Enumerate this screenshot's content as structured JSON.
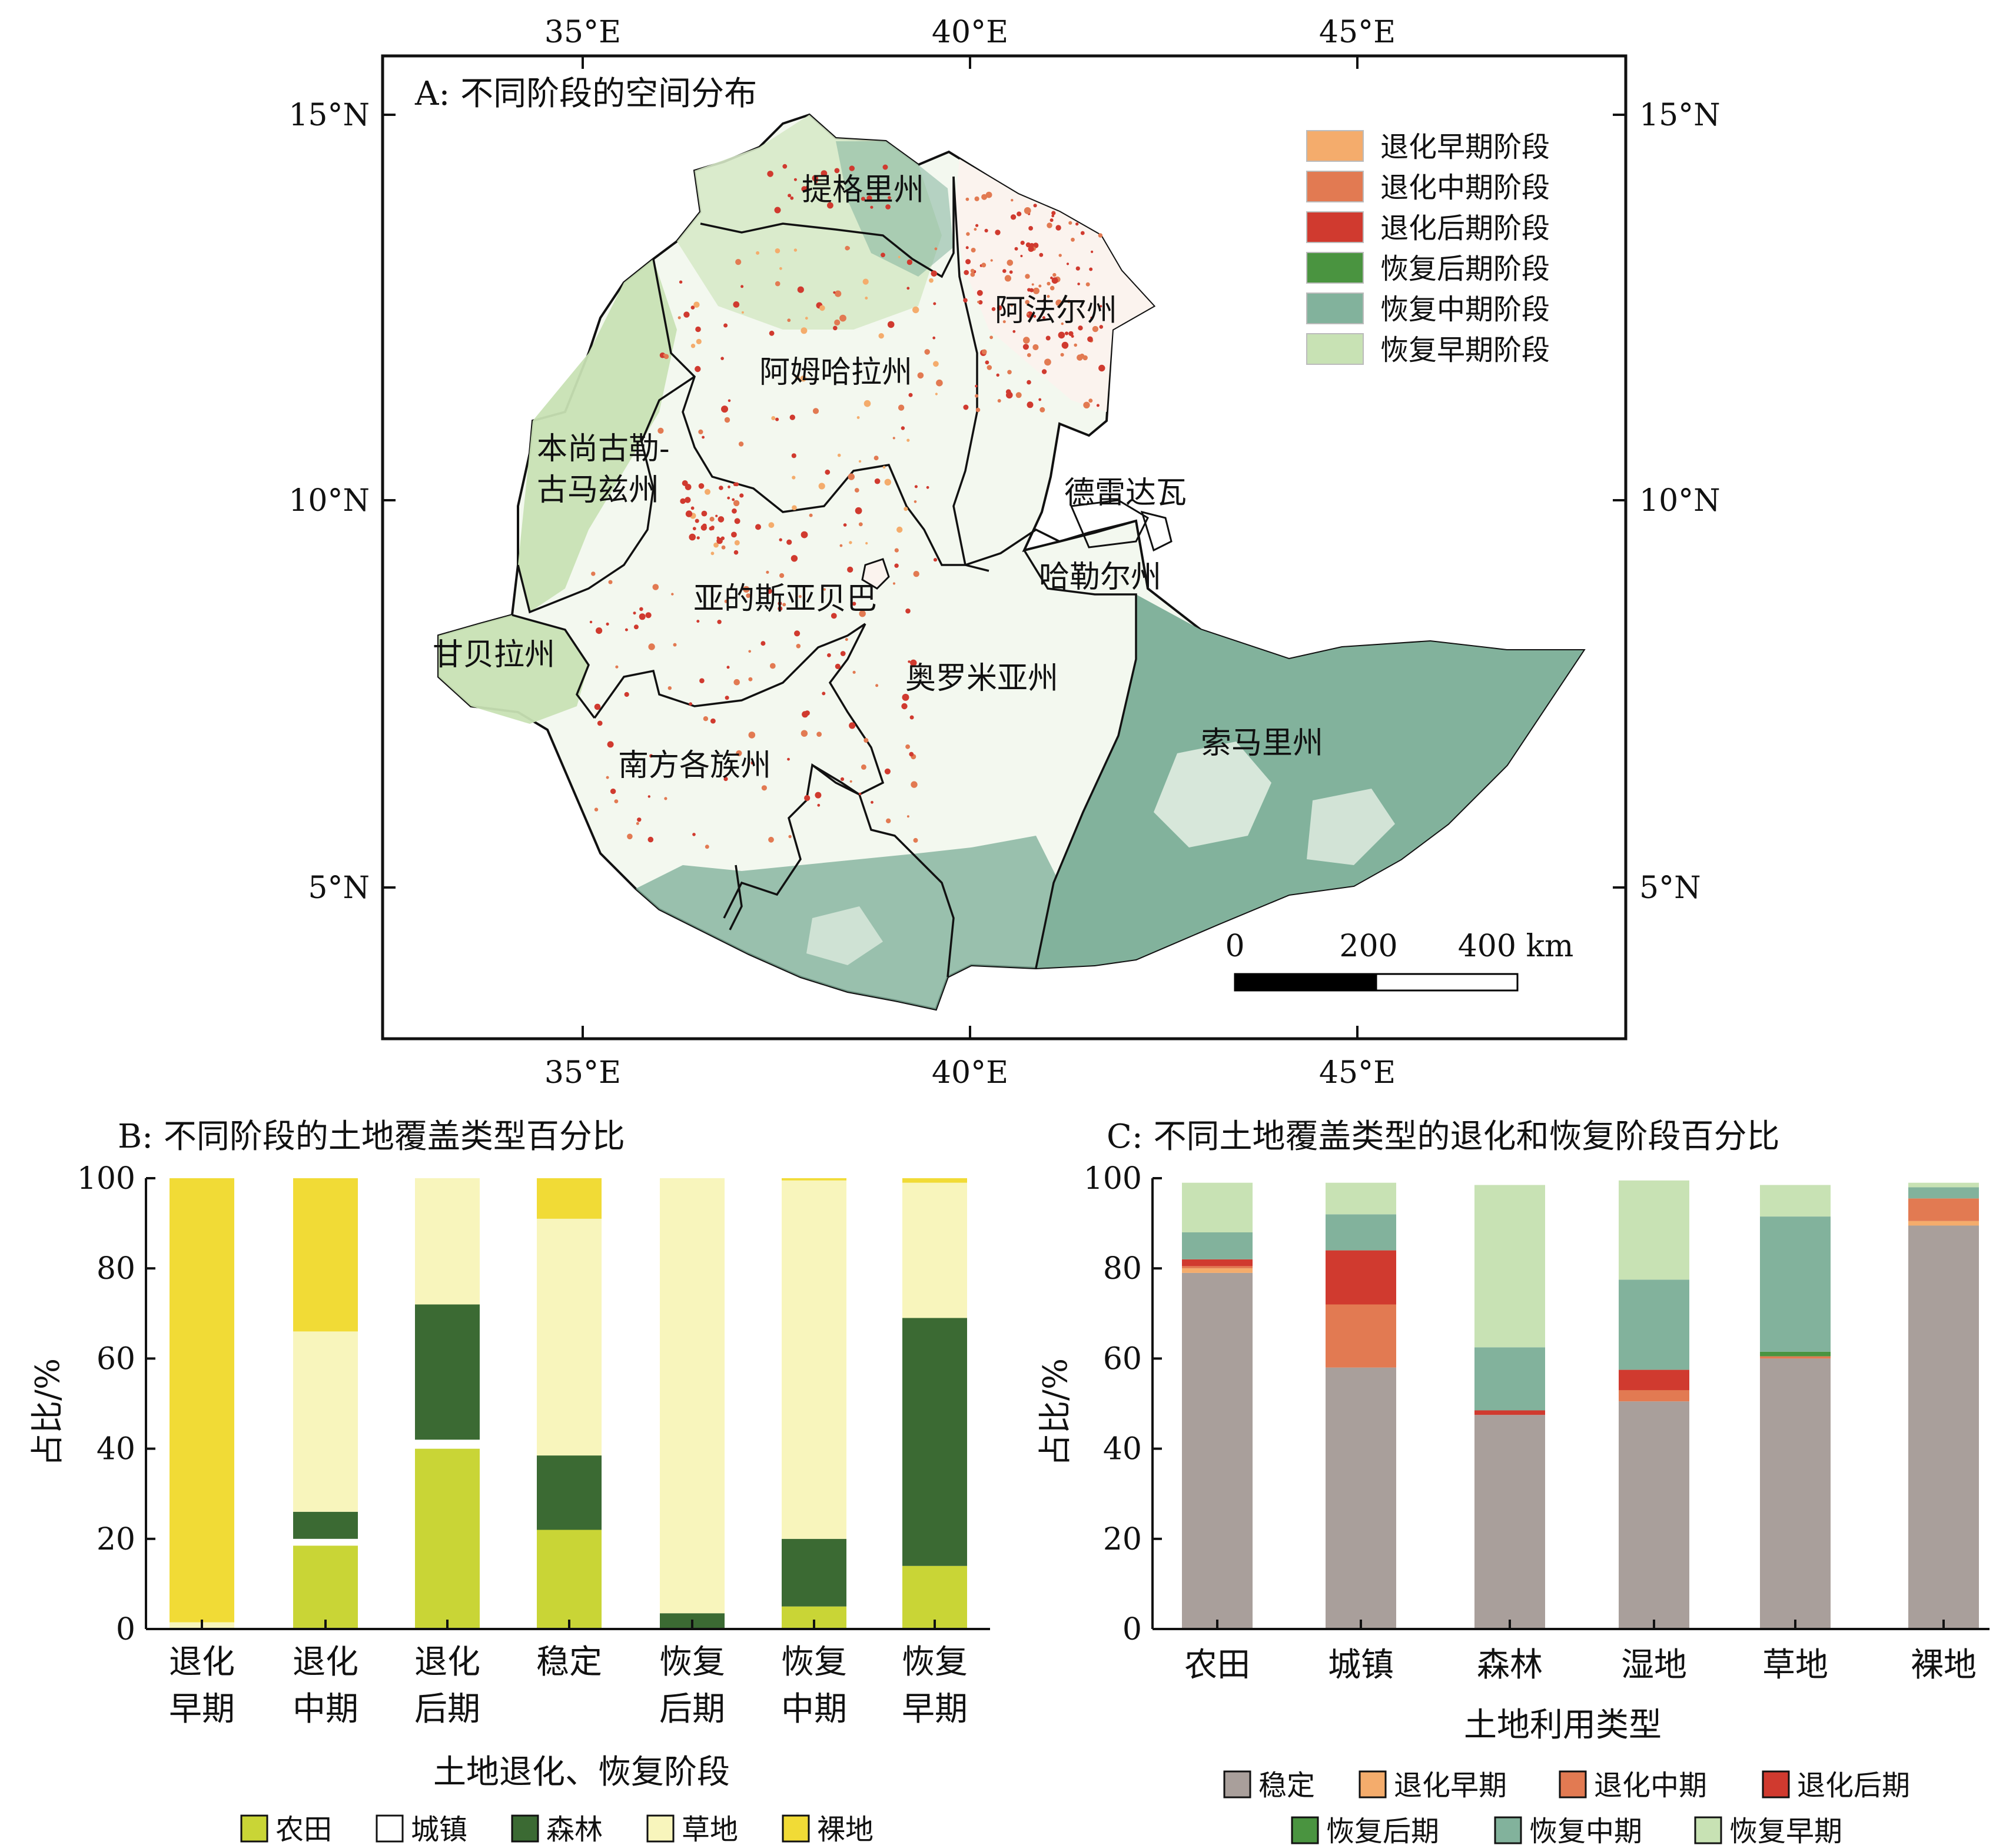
{
  "chart_data": [
    {
      "panel": "A",
      "type": "map",
      "title": "A: 不同阶段的空间分布",
      "top_ticks": [
        "35°E",
        "40°E",
        "45°E"
      ],
      "bottom_ticks": [
        "35°E",
        "40°E",
        "45°E"
      ],
      "left_ticks": [
        "15°N",
        "10°N",
        "5°N"
      ],
      "right_ticks": [
        "15°N",
        "10°N",
        "5°N"
      ],
      "legend": [
        {
          "label": "退化早期阶段",
          "color": "#f4ac6c"
        },
        {
          "label": "退化中期阶段",
          "color": "#e27a52"
        },
        {
          "label": "退化后期阶段",
          "color": "#d03a2f"
        },
        {
          "label": "恢复后期阶段",
          "color": "#4a9440"
        },
        {
          "label": "恢复中期阶段",
          "color": "#82b29c"
        },
        {
          "label": "恢复早期阶段",
          "color": "#c8e2b4"
        }
      ],
      "regions": [
        {
          "name": "提格里州"
        },
        {
          "name": "阿法尔州"
        },
        {
          "name": "阿姆哈拉州"
        },
        {
          "name": "本尚古勒-"
        },
        {
          "name": "古马兹州"
        },
        {
          "name": "德雷达瓦"
        },
        {
          "name": "哈勒尔州"
        },
        {
          "name": "亚的斯亚贝巴"
        },
        {
          "name": "甘贝拉州"
        },
        {
          "name": "奥罗米亚州"
        },
        {
          "name": "索马里州"
        },
        {
          "name": "南方各族州"
        }
      ],
      "scale_bar": {
        "labels": [
          "0",
          "200",
          "400 km"
        ]
      }
    },
    {
      "panel": "B",
      "type": "bar",
      "stacked": true,
      "title": "B: 不同阶段的土地覆盖类型百分比",
      "xlabel": "土地退化、恢复阶段",
      "ylabel": "占比/%",
      "ylim": [
        0,
        100
      ],
      "yticks": [
        0,
        20,
        40,
        60,
        80,
        100
      ],
      "categories": [
        [
          "退化",
          "早期"
        ],
        [
          "退化",
          "中期"
        ],
        [
          "退化",
          "后期"
        ],
        [
          "稳定",
          ""
        ],
        [
          "恢复",
          "后期"
        ],
        [
          "恢复",
          "中期"
        ],
        [
          "恢复",
          "早期"
        ]
      ],
      "series": [
        {
          "name": "农田",
          "color": "#c9d536",
          "values": [
            0,
            18.5,
            40,
            22,
            0,
            5,
            14
          ]
        },
        {
          "name": "城镇",
          "color": "#ffffff",
          "values": [
            0,
            1.5,
            2,
            0,
            0,
            0,
            0
          ]
        },
        {
          "name": "森林",
          "color": "#3b6a33",
          "values": [
            0,
            6,
            30,
            16.5,
            3.5,
            15,
            55
          ]
        },
        {
          "name": "草地",
          "color": "#f8f5bc",
          "values": [
            1.5,
            40,
            28,
            52.5,
            96.5,
            79.5,
            30
          ]
        },
        {
          "name": "裸地",
          "color": "#f1db36",
          "values": [
            98.5,
            34,
            0,
            9,
            0,
            0.5,
            1
          ]
        }
      ],
      "legend": [
        {
          "label": "农田",
          "color": "#c9d536"
        },
        {
          "label": "城镇",
          "color": "#ffffff"
        },
        {
          "label": "森林",
          "color": "#3b6a33"
        },
        {
          "label": "草地",
          "color": "#f8f5bc"
        },
        {
          "label": "裸地",
          "color": "#f1db36"
        }
      ]
    },
    {
      "panel": "C",
      "type": "bar",
      "stacked": true,
      "title": "C: 不同土地覆盖类型的退化和恢复阶段百分比",
      "xlabel": "土地利用类型",
      "ylabel": "占比/%",
      "ylim": [
        0,
        100
      ],
      "yticks": [
        0,
        20,
        40,
        60,
        80,
        100
      ],
      "categories": [
        "农田",
        "城镇",
        "森林",
        "湿地",
        "草地",
        "裸地"
      ],
      "series": [
        {
          "name": "稳定",
          "color": "#a99f9b",
          "values": [
            79,
            58,
            47.5,
            50.5,
            60,
            89.5
          ]
        },
        {
          "name": "退化早期",
          "color": "#f4ac6c",
          "values": [
            1,
            0,
            0,
            0,
            0,
            1
          ]
        },
        {
          "name": "退化中期",
          "color": "#e27a52",
          "values": [
            0.5,
            14,
            0,
            2.5,
            0.5,
            5
          ]
        },
        {
          "name": "退化后期",
          "color": "#d03a2f",
          "values": [
            1.5,
            12,
            1,
            4.5,
            0,
            0
          ]
        },
        {
          "name": "恢复后期",
          "color": "#4a9440",
          "values": [
            0,
            0,
            0,
            0,
            1,
            0
          ]
        },
        {
          "name": "恢复中期",
          "color": "#82b29c",
          "values": [
            6,
            8,
            14,
            20,
            30,
            2.5
          ]
        },
        {
          "name": "恢复早期",
          "color": "#c8e2b4",
          "values": [
            11,
            7,
            36,
            22,
            7,
            1
          ]
        }
      ],
      "legend": [
        {
          "label": "稳定",
          "color": "#a99f9b"
        },
        {
          "label": "退化早期",
          "color": "#f4ac6c"
        },
        {
          "label": "退化中期",
          "color": "#e27a52"
        },
        {
          "label": "退化后期",
          "color": "#d03a2f"
        },
        {
          "label": "恢复后期",
          "color": "#4a9440"
        },
        {
          "label": "恢复中期",
          "color": "#82b29c"
        },
        {
          "label": "恢复早期",
          "color": "#c8e2b4"
        }
      ]
    }
  ]
}
